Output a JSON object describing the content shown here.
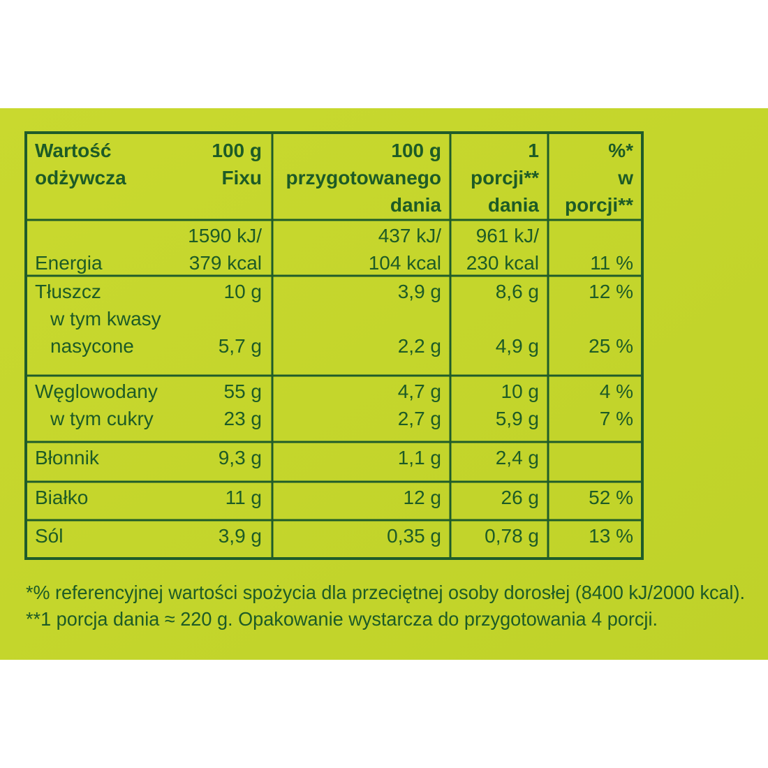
{
  "table": {
    "columns": [
      [
        "Wartość",
        "odżywcza"
      ],
      [
        "100 g",
        "Fixu"
      ],
      [
        "100 g",
        "przygotowanego",
        "dania"
      ],
      [
        "1",
        "porcji**",
        "dania"
      ],
      [
        "%*",
        "w",
        "porcji**"
      ]
    ],
    "groups": [
      {
        "rows": [
          {
            "label": [
              "Energia"
            ],
            "values": [
              [
                "1590 kJ/",
                "379 kcal"
              ],
              [
                "437 kJ/",
                "104 kcal"
              ],
              [
                "961 kJ/",
                "230 kcal"
              ],
              [
                "11 %"
              ]
            ]
          }
        ]
      },
      {
        "rows": [
          {
            "label": [
              "Tłuszcz"
            ],
            "values": [
              [
                "10 g"
              ],
              [
                "3,9 g"
              ],
              [
                "8,6 g"
              ],
              [
                "12 %"
              ]
            ]
          },
          {
            "label": [
              "w tym kwasy",
              "nasycone"
            ],
            "indent": true,
            "values": [
              [
                "5,7 g"
              ],
              [
                "2,2 g"
              ],
              [
                "4,9 g"
              ],
              [
                "25 %"
              ]
            ]
          }
        ]
      },
      {
        "rows": [
          {
            "label": [
              "Węglowodany"
            ],
            "values": [
              [
                "55 g"
              ],
              [
                "4,7 g"
              ],
              [
                "10 g"
              ],
              [
                "4 %"
              ]
            ]
          },
          {
            "label": [
              "w tym cukry"
            ],
            "indent": true,
            "values": [
              [
                "23 g"
              ],
              [
                "2,7 g"
              ],
              [
                "5,9 g"
              ],
              [
                "7 %"
              ]
            ]
          }
        ]
      },
      {
        "rows": [
          {
            "label": [
              "Błonnik"
            ],
            "values": [
              [
                "9,3 g"
              ],
              [
                "1,1 g"
              ],
              [
                "2,4 g"
              ],
              []
            ]
          }
        ]
      },
      {
        "rows": [
          {
            "label": [
              "Białko"
            ],
            "values": [
              [
                "11 g"
              ],
              [
                "12 g"
              ],
              [
                "26 g"
              ],
              [
                "52 %"
              ]
            ]
          }
        ]
      },
      {
        "rows": [
          {
            "label": [
              "Sól"
            ],
            "values": [
              [
                "3,9 g"
              ],
              [
                "0,35 g"
              ],
              [
                "0,78 g"
              ],
              [
                "13 %"
              ]
            ]
          }
        ]
      }
    ]
  },
  "footnotes": [
    "*% referencyjnej wartości spożycia dla przeciętnej osoby dorosłej (8400 kJ/2000 kcal).",
    "**1 porcja dania ≈ 220 g. Opakowanie wystarcza do przygotowania 4 porcji."
  ]
}
